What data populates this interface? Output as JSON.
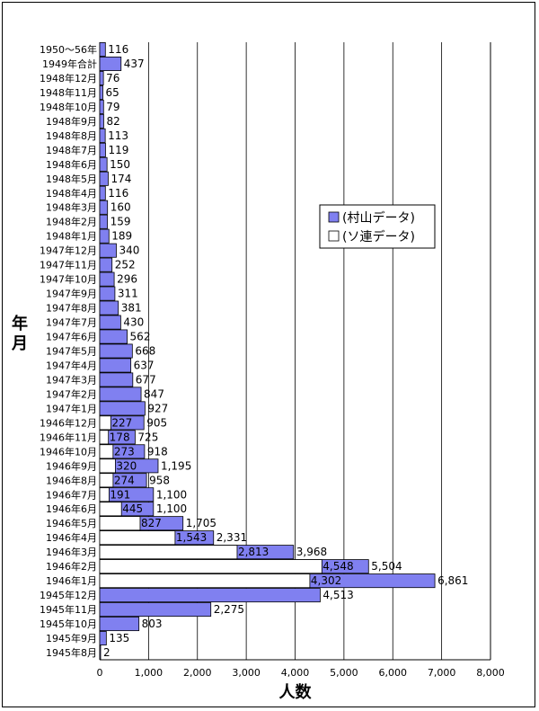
{
  "chart_data": {
    "type": "bar",
    "orientation": "horizontal",
    "xlabel": "人数",
    "ylabel": "年月",
    "xlim": [
      0,
      8000
    ],
    "xticks": [
      "0",
      "1,000",
      "2,000",
      "3,000",
      "4,000",
      "5,000",
      "6,000",
      "7,000",
      "8,000"
    ],
    "grid": true,
    "legend_position": "right",
    "categories": [
      "1950～56年",
      "1949年合計",
      "1948年12月",
      "1948年11月",
      "1948年10月",
      "1948年9月",
      "1948年8月",
      "1948年7月",
      "1948年6月",
      "1948年5月",
      "1948年4月",
      "1948年3月",
      "1948年2月",
      "1948年1月",
      "1947年12月",
      "1947年11月",
      "1947年10月",
      "1947年9月",
      "1947年8月",
      "1947年7月",
      "1947年6月",
      "1947年5月",
      "1947年4月",
      "1947年3月",
      "1947年2月",
      "1947年1月",
      "1946年12月",
      "1946年11月",
      "1946年10月",
      "1946年9月",
      "1946年8月",
      "1946年7月",
      "1946年6月",
      "1946年5月",
      "1946年4月",
      "1946年3月",
      "1946年2月",
      "1946年1月",
      "1945年12月",
      "1945年11月",
      "1945年10月",
      "1945年9月",
      "1945年8月"
    ],
    "series": [
      {
        "name": "(村山データ)",
        "color": "#8080f0",
        "values": [
          116,
          437,
          76,
          65,
          79,
          82,
          113,
          119,
          150,
          174,
          116,
          160,
          159,
          189,
          340,
          252,
          296,
          311,
          381,
          430,
          562,
          668,
          637,
          677,
          847,
          927,
          905,
          725,
          918,
          1195,
          958,
          1100,
          1100,
          1705,
          2331,
          3968,
          5504,
          6861,
          4513,
          2275,
          803,
          135,
          2
        ],
        "labels": [
          "116",
          "437",
          "76",
          "65",
          "79",
          "82",
          "113",
          "119",
          "150",
          "174",
          "116",
          "160",
          "159",
          "189",
          "340",
          "252",
          "296",
          "311",
          "381",
          "430",
          "562",
          "668",
          "637",
          "677",
          "847",
          "927",
          "905",
          "725",
          "918",
          "1,195",
          "958",
          "1,100",
          "1,100",
          "1,705",
          "2,331",
          "3,968",
          "5,504",
          "6,861",
          "4,513",
          "2,275",
          "803",
          "135",
          "2"
        ]
      },
      {
        "name": "(ソ連データ)",
        "color": "#ffffff",
        "values": [
          null,
          null,
          null,
          null,
          null,
          null,
          null,
          null,
          null,
          null,
          null,
          null,
          null,
          null,
          null,
          null,
          null,
          null,
          null,
          null,
          null,
          null,
          null,
          null,
          null,
          null,
          227,
          178,
          273,
          320,
          274,
          191,
          445,
          827,
          1543,
          2813,
          4548,
          4302,
          null,
          null,
          null,
          null,
          null
        ],
        "labels": [
          null,
          null,
          null,
          null,
          null,
          null,
          null,
          null,
          null,
          null,
          null,
          null,
          null,
          null,
          null,
          null,
          null,
          null,
          null,
          null,
          null,
          null,
          null,
          null,
          null,
          null,
          "227",
          "178",
          "273",
          "320",
          "274",
          "191",
          "445",
          "827",
          "1,543",
          "2,813",
          "4,548",
          "4,302",
          null,
          null,
          null,
          null,
          null
        ]
      }
    ]
  }
}
